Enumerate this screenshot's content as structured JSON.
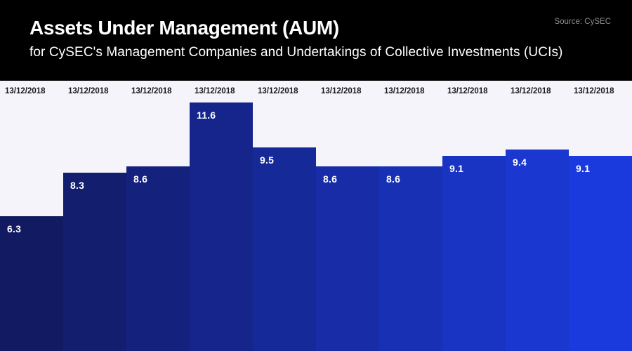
{
  "header": {
    "title": "Assets Under Management (AUM)",
    "subtitle": "for CySEC's Management Companies and Undertakings of Collective Investments (UCIs)",
    "source": "Source: CySEC"
  },
  "colors": {
    "header_bg": "#000000",
    "header_text": "#ffffff",
    "source_text": "#8e8e8e",
    "plot_bg": "#f4f4fa",
    "category_label_text": "#17171c",
    "value_label_text": "#ffffff",
    "bar_gradient_start": "#121b61",
    "bar_gradient_end": "#1b3ade"
  },
  "chart_data": {
    "type": "bar",
    "title": "Assets Under Management (AUM)",
    "subtitle": "for CySEC's Management Companies and Undertakings of Collective Investments (UCIs)",
    "source": "Source: CySEC",
    "categories": [
      "13/12/2018",
      "13/12/2018",
      "13/12/2018",
      "13/12/2018",
      "13/12/2018",
      "13/12/2018",
      "13/12/2018",
      "13/12/2018",
      "13/12/2018",
      "13/12/2018"
    ],
    "values": [
      6.3,
      8.3,
      8.6,
      11.6,
      9.5,
      8.6,
      8.6,
      9.1,
      9.4,
      9.1
    ],
    "bar_colors": [
      "#121b61",
      "#131e6f",
      "#14227d",
      "#15258b",
      "#162998",
      "#172ca6",
      "#1830b4",
      "#1933c2",
      "#1a37d0",
      "#1b3ade"
    ],
    "xlabel": "",
    "ylabel": "",
    "ylim": [
      0,
      12.6
    ],
    "grid": false,
    "legend": "none",
    "bar_gap": 0,
    "value_labels_position": "inside-top-left",
    "category_labels_position": "top-of-plot"
  }
}
